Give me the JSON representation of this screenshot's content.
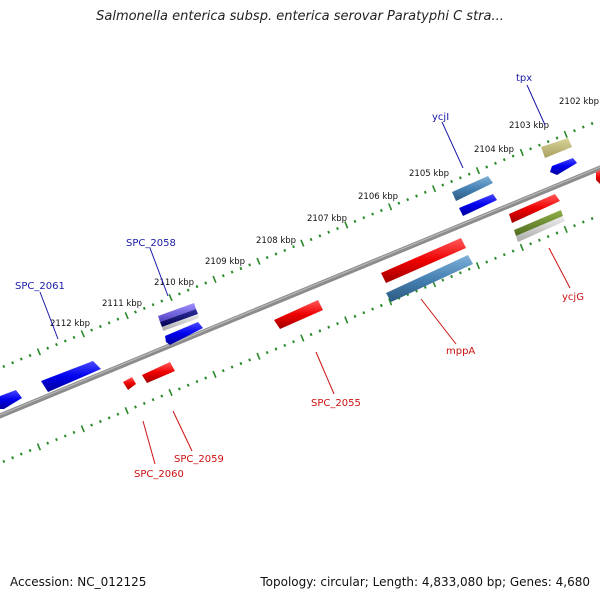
{
  "title": "Salmonella enterica subsp. enterica serovar Paratyphi C stra...",
  "footer": {
    "accession": "Accession: NC_012125",
    "summary": "Topology: circular; Length: 4,833,080 bp; Genes: 4,680"
  },
  "colors": {
    "backbone": "#8c8c8c",
    "tick_track": "#2a8a2a",
    "label_blue": "#1a1aa6",
    "label_red": "#cc1111"
  },
  "scale_ticks": [
    {
      "label": "2102 kbp"
    },
    {
      "label": "2103 kbp"
    },
    {
      "label": "2104 kbp"
    },
    {
      "label": "2105 kbp"
    },
    {
      "label": "2106 kbp"
    },
    {
      "label": "2107 kbp"
    },
    {
      "label": "2108 kbp"
    },
    {
      "label": "2109 kbp"
    },
    {
      "label": "2110 kbp"
    },
    {
      "label": "2111 kbp"
    },
    {
      "label": "2112 kbp"
    }
  ],
  "gene_labels": [
    {
      "name": "tpx",
      "strand": "forward"
    },
    {
      "name": "ycjI",
      "strand": "forward"
    },
    {
      "name": "SPC_2058",
      "strand": "forward"
    },
    {
      "name": "SPC_2061",
      "strand": "forward"
    },
    {
      "name": "ycjG",
      "strand": "reverse"
    },
    {
      "name": "mppA",
      "strand": "reverse"
    },
    {
      "name": "SPC_2055",
      "strand": "reverse"
    },
    {
      "name": "SPC_2059",
      "strand": "reverse"
    },
    {
      "name": "SPC_2060",
      "strand": "reverse"
    }
  ]
}
